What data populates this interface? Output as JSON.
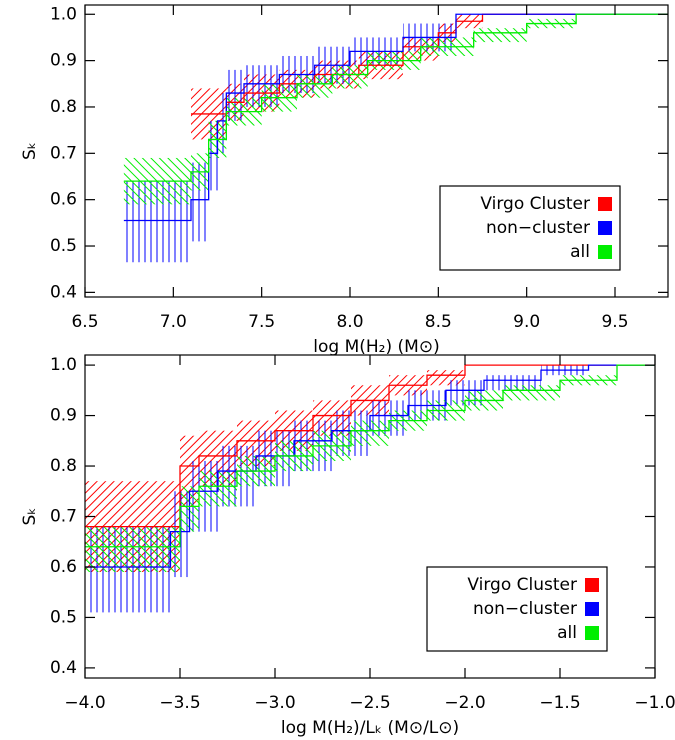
{
  "chart_data": [
    {
      "type": "step",
      "xlabel": "log M(H₂) (M⊙)",
      "ylabel": "Sₖ",
      "xlim": [
        6.5,
        9.8
      ],
      "ylim": [
        0.39,
        1.02
      ],
      "xticks": [
        6.5,
        {
          "value": 7,
          "label": "7.0"
        },
        7.5,
        {
          "value": 8,
          "label": "8.0"
        },
        8.5,
        {
          "value": 9,
          "label": "9.0"
        },
        9.5
      ],
      "yticks": [
        0.4,
        0.5,
        0.6,
        0.7,
        0.8,
        0.9,
        {
          "value": 1,
          "label": "1.0"
        }
      ],
      "legend": "lower right",
      "series": [
        {
          "name": "Virgo Cluster",
          "color": "#ff0000",
          "hatch": "backslash",
          "x": [
            7.1,
            7.3,
            7.4,
            7.6,
            7.8,
            8.05,
            8.3,
            8.5,
            8.6,
            8.75
          ],
          "values": [
            0.785,
            0.81,
            0.83,
            0.85,
            0.87,
            0.89,
            0.93,
            0.96,
            0.985,
            1.0
          ],
          "lower": [
            0.73,
            0.77,
            0.79,
            0.82,
            0.84,
            0.86,
            0.9,
            0.94,
            0.97,
            1.0
          ],
          "upper": [
            0.84,
            0.85,
            0.87,
            0.88,
            0.9,
            0.92,
            0.95,
            0.98,
            1.0,
            1.0
          ]
        },
        {
          "name": "non−cluster",
          "color": "#0000ff",
          "hatch": "vertical",
          "x": [
            6.72,
            7.1,
            7.2,
            7.25,
            7.3,
            7.4,
            7.6,
            7.8,
            8.0,
            8.3,
            8.6
          ],
          "values": [
            0.555,
            0.6,
            0.7,
            0.77,
            0.83,
            0.85,
            0.87,
            0.89,
            0.92,
            0.95,
            1.0
          ],
          "lower": [
            0.465,
            0.51,
            0.62,
            0.7,
            0.77,
            0.8,
            0.83,
            0.85,
            0.89,
            0.92,
            1.0
          ],
          "upper": [
            0.64,
            0.68,
            0.77,
            0.83,
            0.88,
            0.89,
            0.91,
            0.93,
            0.95,
            0.98,
            1.0
          ]
        },
        {
          "name": "all",
          "color": "#00ee00",
          "hatch": "slash",
          "x": [
            6.72,
            7.1,
            7.2,
            7.3,
            7.5,
            7.7,
            7.9,
            8.1,
            8.4,
            8.7,
            9.0,
            9.28
          ],
          "values": [
            0.64,
            0.66,
            0.73,
            0.79,
            0.82,
            0.85,
            0.87,
            0.9,
            0.93,
            0.96,
            0.98,
            1.0
          ],
          "lower": [
            0.59,
            0.62,
            0.69,
            0.76,
            0.79,
            0.82,
            0.84,
            0.88,
            0.91,
            0.94,
            0.97,
            1.0
          ],
          "upper": [
            0.69,
            0.7,
            0.77,
            0.82,
            0.85,
            0.87,
            0.89,
            0.92,
            0.95,
            0.97,
            0.99,
            1.0
          ]
        }
      ]
    },
    {
      "type": "step",
      "xlabel": "log M(H₂)/Lₖ (M⊙/L⊙)",
      "ylabel": "Sₖ",
      "xlim": [
        -4,
        -1
      ],
      "ylim": [
        0.38,
        1.02
      ],
      "xticks": [
        {
          "value": -4,
          "label": "−4.0"
        },
        {
          "value": -3.5,
          "label": "−3.5"
        },
        {
          "value": -3,
          "label": "−3.0"
        },
        {
          "value": -2.5,
          "label": "−2.5"
        },
        {
          "value": -2,
          "label": "−2.0"
        },
        {
          "value": -1.5,
          "label": "−1.5"
        },
        {
          "value": -1,
          "label": "−1.0"
        }
      ],
      "yticks": [
        0.4,
        0.5,
        0.6,
        0.7,
        0.8,
        0.9,
        {
          "value": 1,
          "label": "1.0"
        }
      ],
      "legend": "lower right",
      "series": [
        {
          "name": "Virgo Cluster",
          "color": "#ff0000",
          "hatch": "backslash",
          "x": [
            -4,
            -3.5,
            -3.4,
            -3.2,
            -3.0,
            -2.8,
            -2.6,
            -2.4,
            -2.2,
            -2.0
          ],
          "values": [
            0.68,
            0.8,
            0.82,
            0.85,
            0.87,
            0.9,
            0.93,
            0.96,
            0.98,
            1.0
          ],
          "lower": [
            0.59,
            0.72,
            0.76,
            0.8,
            0.83,
            0.86,
            0.9,
            0.94,
            0.96,
            1.0
          ],
          "upper": [
            0.77,
            0.86,
            0.87,
            0.89,
            0.91,
            0.93,
            0.96,
            0.98,
            0.99,
            1.0
          ]
        },
        {
          "name": "non−cluster",
          "color": "#0000ff",
          "hatch": "vertical",
          "x": [
            -4,
            -3.55,
            -3.45,
            -3.3,
            -3.1,
            -2.9,
            -2.7,
            -2.5,
            -2.3,
            -2.1,
            -1.9,
            -1.6,
            -1.35
          ],
          "values": [
            0.6,
            0.67,
            0.75,
            0.79,
            0.82,
            0.85,
            0.87,
            0.9,
            0.92,
            0.95,
            0.97,
            0.99,
            1.0
          ],
          "lower": [
            0.51,
            0.58,
            0.67,
            0.72,
            0.76,
            0.79,
            0.82,
            0.86,
            0.89,
            0.92,
            0.95,
            0.98,
            1.0
          ],
          "upper": [
            0.68,
            0.75,
            0.81,
            0.84,
            0.87,
            0.89,
            0.91,
            0.93,
            0.95,
            0.97,
            0.98,
            1.0,
            1.0
          ]
        },
        {
          "name": "all",
          "color": "#00ee00",
          "hatch": "slash",
          "x": [
            -4,
            -3.5,
            -3.4,
            -3.2,
            -3.0,
            -2.8,
            -2.6,
            -2.4,
            -2.2,
            -2.0,
            -1.8,
            -1.5,
            -1.2
          ],
          "values": [
            0.64,
            0.72,
            0.76,
            0.79,
            0.82,
            0.84,
            0.87,
            0.89,
            0.91,
            0.93,
            0.95,
            0.97,
            1.0
          ],
          "lower": [
            0.59,
            0.67,
            0.72,
            0.76,
            0.79,
            0.81,
            0.84,
            0.87,
            0.89,
            0.91,
            0.93,
            0.96,
            1.0
          ],
          "upper": [
            0.68,
            0.76,
            0.79,
            0.82,
            0.85,
            0.87,
            0.89,
            0.91,
            0.93,
            0.95,
            0.96,
            0.98,
            1.0
          ]
        }
      ]
    }
  ]
}
